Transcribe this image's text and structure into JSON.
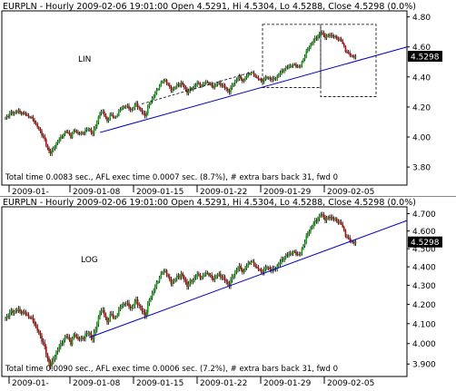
{
  "chart_data": [
    {
      "type": "candlestick",
      "scale": "linear",
      "header": "EURPLN - Hourly 2009-02-06 19:01:00 Open 4.5291, Hi 4.5304, Lo 4.5288, Close 4.5298 (0.0%)",
      "annotation": "LIN",
      "footer": "Total time 0.0083 sec., AFL exec time 0.0007 sec. (8.7%), # extra bars back 31, fwd 0",
      "last_value_label": "4.5298",
      "ylim": [
        3.68,
        4.84
      ],
      "y_ticks": [
        "3.80",
        "4.00",
        "4.20",
        "4.40",
        "4.60",
        "4.80"
      ],
      "x_tick_labels": [
        "2009-01-",
        "2009-01-08",
        "2009-01-15",
        "2009-01-22",
        "2009-01-29",
        "2009-02-05"
      ],
      "grid": false,
      "up_color": "#00aa00",
      "down_color": "#cc0000",
      "trendline_color": "#0000cc"
    },
    {
      "type": "candlestick",
      "scale": "log",
      "header": "EURPLN - Hourly 2009-02-06 19:01:00 Open 4.5291, Hi 4.5304, Lo 4.5288, Close 4.5298 (0.0%)",
      "annotation": "LOG",
      "footer": "Total time 0.0090 sec., AFL exec time 0.0006 sec. (7.2%), # extra bars back 31, fwd 0",
      "last_value_label": "4.5298",
      "ylim": [
        3.84,
        4.74
      ],
      "y_ticks": [
        "3.900",
        "4.000",
        "4.100",
        "4.200",
        "4.300",
        "4.400",
        "4.500",
        "4.600",
        "4.700"
      ],
      "x_tick_labels": [
        "2009-01-",
        "2009-01-08",
        "2009-01-15",
        "2009-01-22",
        "2009-01-29",
        "2009-02-05"
      ],
      "grid": false,
      "up_color": "#00aa00",
      "down_color": "#cc0000",
      "trendline_color": "#0000cc"
    }
  ],
  "series": {
    "name": "EURPLN",
    "x_range": [
      "2009-01-02",
      "2009-02-06"
    ],
    "close_path": [
      [
        0,
        4.13
      ],
      [
        6,
        4.16
      ],
      [
        14,
        4.17
      ],
      [
        22,
        4.15
      ],
      [
        30,
        4.12
      ],
      [
        36,
        4.06
      ],
      [
        42,
        4.0
      ],
      [
        46,
        3.93
      ],
      [
        50,
        3.89
      ],
      [
        55,
        3.95
      ],
      [
        60,
        3.99
      ],
      [
        64,
        4.02
      ],
      [
        68,
        4.04
      ],
      [
        72,
        4.0
      ],
      [
        76,
        4.05
      ],
      [
        80,
        4.02
      ],
      [
        86,
        4.03
      ],
      [
        92,
        4.06
      ],
      [
        96,
        4.02
      ],
      [
        100,
        4.09
      ],
      [
        104,
        4.16
      ],
      [
        108,
        4.17
      ],
      [
        112,
        4.1
      ],
      [
        116,
        4.16
      ],
      [
        120,
        4.12
      ],
      [
        126,
        4.18
      ],
      [
        132,
        4.21
      ],
      [
        138,
        4.18
      ],
      [
        144,
        4.22
      ],
      [
        150,
        4.17
      ],
      [
        154,
        4.14
      ],
      [
        158,
        4.22
      ],
      [
        164,
        4.28
      ],
      [
        170,
        4.35
      ],
      [
        176,
        4.38
      ],
      [
        182,
        4.31
      ],
      [
        188,
        4.34
      ],
      [
        194,
        4.36
      ],
      [
        200,
        4.3
      ],
      [
        206,
        4.33
      ],
      [
        212,
        4.36
      ],
      [
        216,
        4.34
      ],
      [
        222,
        4.37
      ],
      [
        228,
        4.33
      ],
      [
        234,
        4.36
      ],
      [
        240,
        4.34
      ],
      [
        246,
        4.3
      ],
      [
        252,
        4.37
      ],
      [
        258,
        4.4
      ],
      [
        262,
        4.37
      ],
      [
        266,
        4.41
      ],
      [
        270,
        4.43
      ],
      [
        276,
        4.4
      ],
      [
        282,
        4.37
      ],
      [
        288,
        4.4
      ],
      [
        294,
        4.38
      ],
      [
        300,
        4.41
      ],
      [
        306,
        4.45
      ],
      [
        312,
        4.47
      ],
      [
        318,
        4.48
      ],
      [
        324,
        4.46
      ],
      [
        330,
        4.55
      ],
      [
        336,
        4.62
      ],
      [
        342,
        4.66
      ],
      [
        347,
        4.7
      ],
      [
        352,
        4.67
      ],
      [
        358,
        4.68
      ],
      [
        364,
        4.66
      ],
      [
        370,
        4.64
      ],
      [
        374,
        4.58
      ],
      [
        378,
        4.55
      ],
      [
        382,
        4.54
      ],
      [
        386,
        4.53
      ]
    ]
  },
  "trendlines": {
    "lin_blue": [
      [
        104,
        4.03
      ],
      [
        442,
        4.6
      ]
    ],
    "lin_dashed": [
      [
        150,
        4.22
      ],
      [
        270,
        4.43
      ]
    ],
    "log_blue": [
      [
        92,
        4.03
      ],
      [
        442,
        4.66
      ]
    ]
  },
  "selection_boxes": {
    "lin": [
      [
        283,
        4.75
      ],
      [
        347,
        4.33
      ],
      [
        408,
        4.33
      ]
    ]
  }
}
